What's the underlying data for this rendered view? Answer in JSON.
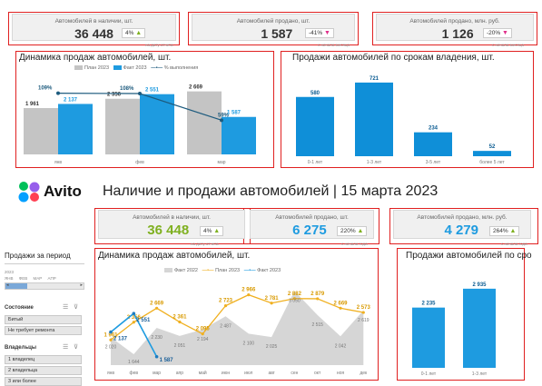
{
  "top": {
    "kpis": [
      {
        "label": "Автомобилей в наличии, шт.",
        "value": "36 448",
        "change": "4%",
        "dir": "up",
        "foot": "на дату отчета"
      },
      {
        "label": "Автомобилей продано, шт.",
        "value": "1 587",
        "change": "-41%",
        "dir": "down",
        "foot": "с начала месяца"
      },
      {
        "label": "Автомобилей продано, млн. руб.",
        "value": "1 126",
        "change": "-20%",
        "dir": "down",
        "foot": "с начала месяца"
      }
    ],
    "sales_chart": {
      "title": "Динамика продаж автомобилей, шт.",
      "legend": [
        "План 2023",
        "Факт 2023",
        "% выполнения"
      ],
      "categories": [
        "янв",
        "фев",
        "мар"
      ],
      "plan": [
        1961,
        2356,
        2669
      ],
      "plan_labels": [
        "1 961",
        "2 356",
        "2 669"
      ],
      "fact": [
        2137,
        2551,
        1587
      ],
      "fact_labels": [
        "2 137",
        "2 551",
        "1 587"
      ],
      "pct_labels": [
        "109%",
        "108%",
        "59%"
      ]
    },
    "ownership_chart": {
      "title": "Продажи автомобилей по срокам владения, шт.",
      "values": [
        580,
        721,
        234,
        52
      ],
      "value_labels": [
        "580",
        "721",
        "234",
        "52"
      ],
      "categories": [
        "0-1 лет",
        "1-3 лет",
        "3-5 лет",
        "более 5 лет"
      ]
    }
  },
  "header": {
    "brand": "Avito",
    "title": "Наличие и продажи автомобилей | 15 марта 2023"
  },
  "bottom": {
    "kpis": [
      {
        "label": "Автомобилей в наличии, шт.",
        "value": "36 448",
        "change": "4%",
        "dir": "up",
        "color": "#7fb020",
        "foot": "на дату отчета"
      },
      {
        "label": "Автомобилей продано, шт.",
        "value": "6 275",
        "change": "220%",
        "dir": "up",
        "color": "#1e9be0",
        "foot": "с начала года"
      },
      {
        "label": "Автомобилей продано, млн. руб.",
        "value": "4 279",
        "change": "264%",
        "dir": "up",
        "color": "#1e9be0",
        "foot": "с начала года"
      }
    ],
    "sidebar": {
      "period_title": "Продажи за период",
      "period_year": "2023",
      "months": [
        "ЯНВ",
        "ФЕВ",
        "МАР",
        "АПР"
      ],
      "state_title": "Состояние",
      "state_items": [
        "Битый",
        "Не требует ремонта"
      ],
      "owners_title": "Владельцы",
      "owners_items": [
        "1 владелец",
        "2 владельца",
        "3 или более"
      ]
    },
    "dynamics_chart": {
      "title": "Динамика продаж автомобилей, шт.",
      "legend": [
        "Факт 2022",
        "План 2023",
        "Факт 2023"
      ],
      "categories": [
        "янв",
        "фев",
        "мар",
        "апр",
        "май",
        "июн",
        "июл",
        "авг",
        "сен",
        "окт",
        "ноя",
        "дек"
      ],
      "fact2022": [
        2020,
        1644,
        2230,
        2051,
        2194,
        2487,
        2100,
        2025,
        3050,
        2515,
        2042,
        2619
      ],
      "fact2022_labels": [
        "2 020",
        "1 644",
        "2 230",
        "2 051",
        "2 194",
        "2 487",
        "2 100",
        "2 025",
        "3 050",
        "2 515",
        "2 042",
        "2 619"
      ],
      "plan2023": [
        1961,
        2356,
        2669,
        2361,
        2095,
        2723,
        2966,
        2781,
        2882,
        2879,
        2669,
        2573
      ],
      "plan2023_labels": [
        "1 961",
        "2 356",
        "2 669",
        "2 361",
        "2 095",
        "2 723",
        "2 966",
        "2 781",
        "2 882",
        "2 879",
        "2 669",
        "2 573"
      ],
      "fact2023": [
        2137,
        2551,
        1587
      ],
      "fact2023_labels": [
        "2 137",
        "2 551",
        "1 587"
      ]
    },
    "ownership_chart": {
      "title": "Продажи автомобилей по сро",
      "values": [
        2235,
        2935
      ],
      "value_labels": [
        "2 235",
        "2 935"
      ],
      "categories": [
        "0-1 лет",
        "1-3 лет"
      ]
    }
  }
}
